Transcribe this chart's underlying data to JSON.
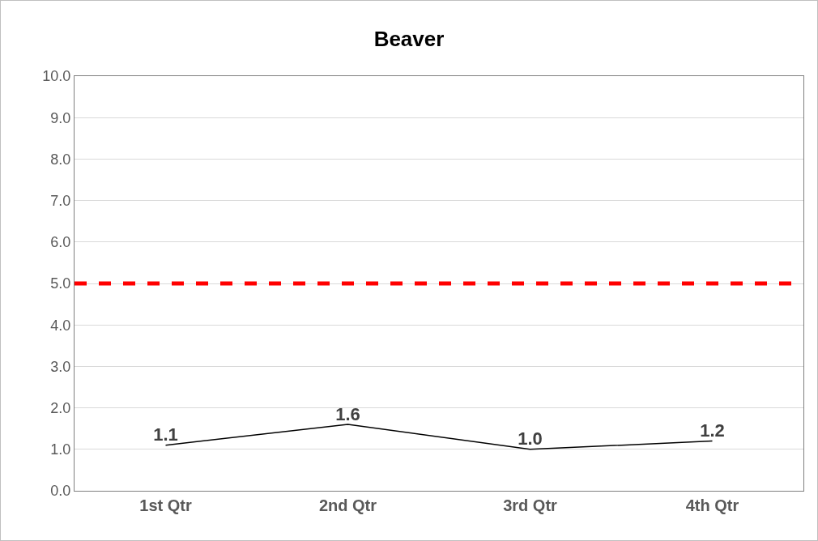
{
  "chart_data": {
    "type": "line",
    "title": "Beaver",
    "categories": [
      "1st Qtr",
      "2nd Qtr",
      "3rd Qtr",
      "4th Qtr"
    ],
    "series": [
      {
        "color": "#000000",
        "values": [
          1.1,
          1.6,
          1.0,
          1.2
        ],
        "value_labels": [
          "1.1",
          "1.6",
          "1.0",
          "1.2"
        ]
      }
    ],
    "ylim": [
      0,
      10
    ],
    "yticks": [
      {
        "value": 0,
        "label": "0.0"
      },
      {
        "value": 1,
        "label": "1.0"
      },
      {
        "value": 2,
        "label": "2.0"
      },
      {
        "value": 3,
        "label": "3.0"
      },
      {
        "value": 4,
        "label": "4.0"
      },
      {
        "value": 5,
        "label": "5.0"
      },
      {
        "value": 6,
        "label": "6.0"
      },
      {
        "value": 7,
        "label": "7.0"
      },
      {
        "value": 8,
        "label": "8.0"
      },
      {
        "value": 9,
        "label": "9.0"
      },
      {
        "value": 10,
        "label": "10.0"
      }
    ],
    "ref_lines": [
      {
        "axis": "y",
        "value": 5,
        "color": "#ff0000",
        "line_style": "dashed"
      }
    ],
    "grid": "y",
    "marker": "none",
    "line_style": "solid"
  }
}
